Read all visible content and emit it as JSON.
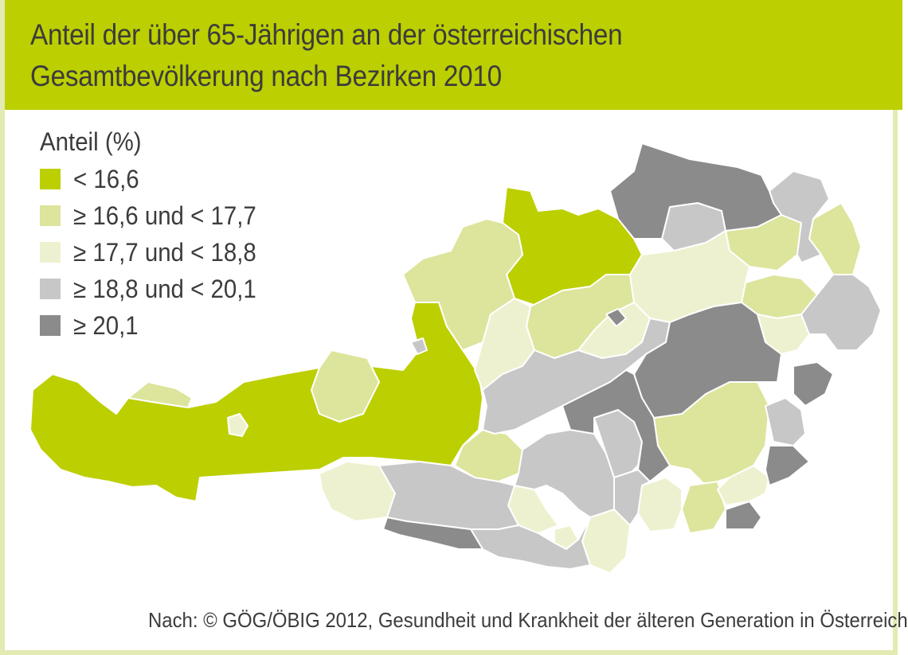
{
  "title": {
    "line1": "Anteil der über 65-Jährigen an der österreichischen",
    "line2": "Gesamtbevölkerung nach Bezirken 2010"
  },
  "legend": {
    "title": "Anteil (%)",
    "items": [
      {
        "label": "< 16,6",
        "color": "#bccf00"
      },
      {
        "label": "≥ 16,6 und < 17,7",
        "color": "#dde49c"
      },
      {
        "label": "≥ 17,7 und < 18,8",
        "color": "#eef1cf"
      },
      {
        "label": "≥ 18,8 und < 20,1",
        "color": "#c6c7c6"
      },
      {
        "label": "≥ 20,1",
        "color": "#8b8b8b"
      }
    ]
  },
  "map": {
    "region": "Österreich",
    "class_colors": [
      "#bccf00",
      "#dde49c",
      "#eef1cf",
      "#c6c7c6",
      "#8b8b8b"
    ]
  },
  "source": "Nach: © GÖG/ÖBIG 2012, Gesundheit und Krankheit der älteren Generation in Österreich"
}
